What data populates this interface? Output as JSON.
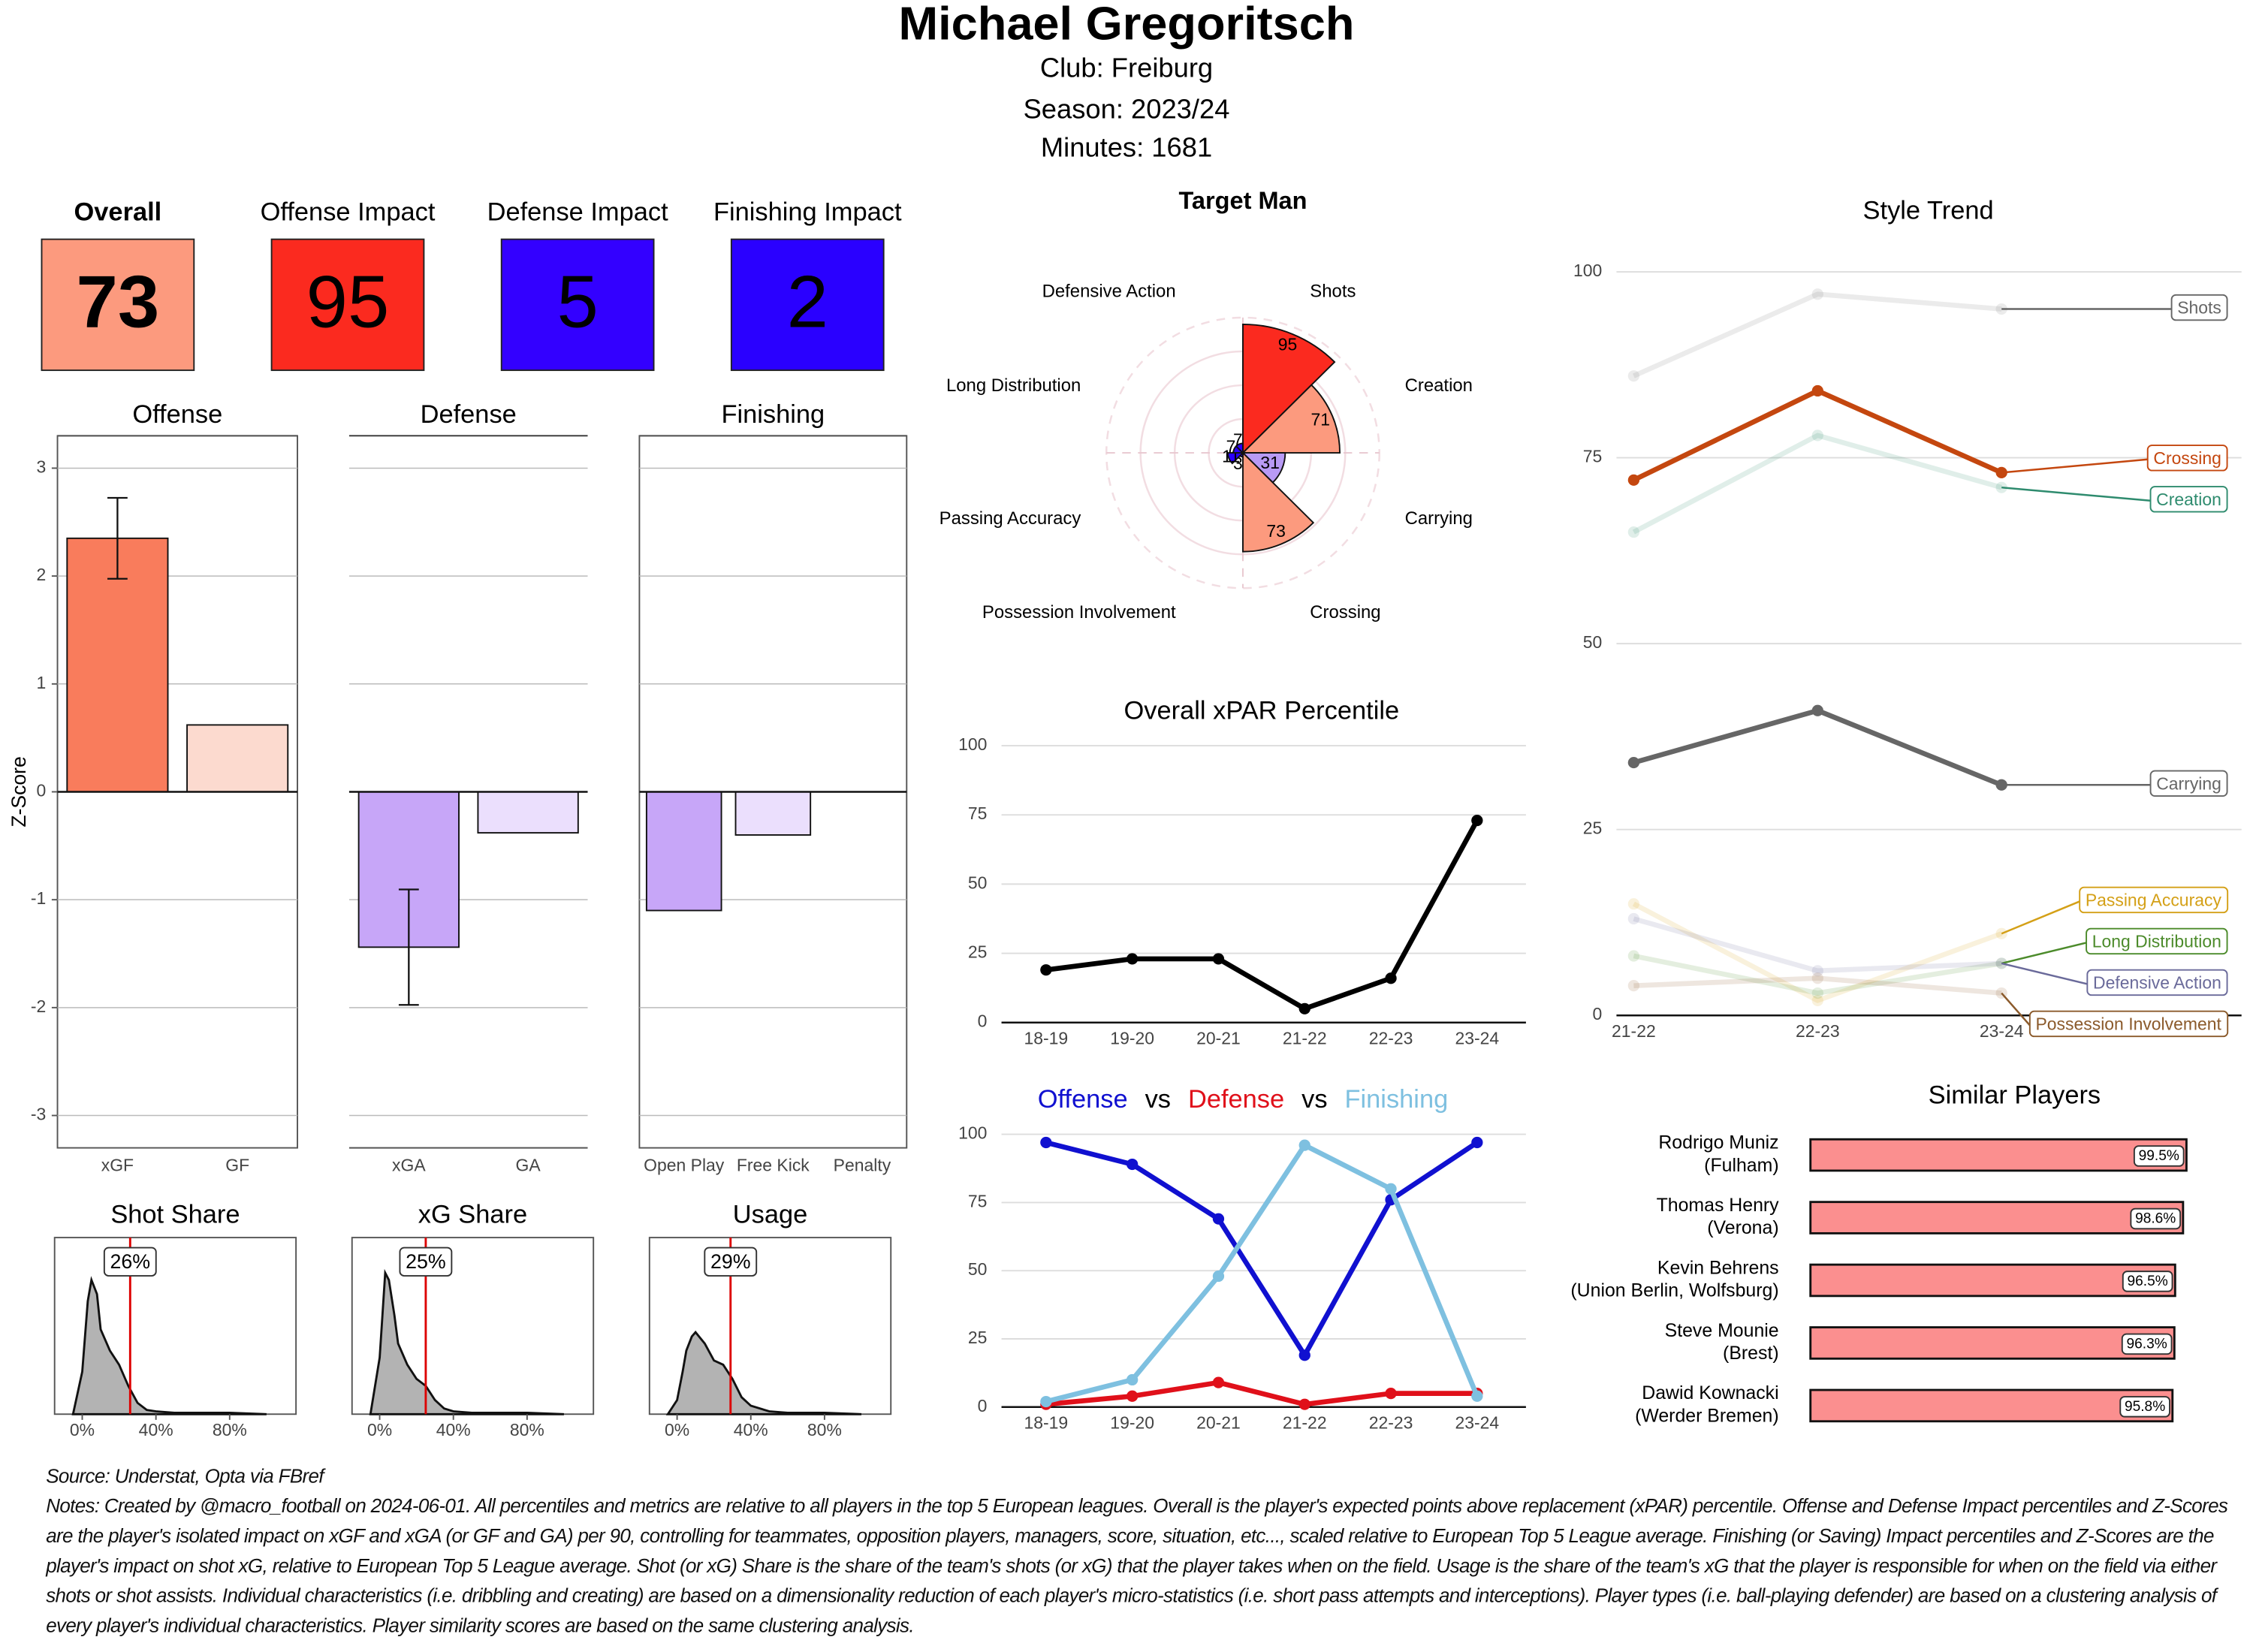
{
  "header": {
    "title": "Michael Gregoritsch",
    "lines": [
      "Club:  Freiburg",
      "Season:  2023/24",
      "Minutes:  1681"
    ]
  },
  "cards": [
    {
      "label": "Overall",
      "value": 73,
      "color": "#fc9a7e"
    },
    {
      "label": "Offense Impact",
      "value": 95,
      "color": "#fb2a1f"
    },
    {
      "label": "Defense Impact",
      "value": 5,
      "color": "#3300ff"
    },
    {
      "label": "Finishing Impact",
      "value": 2,
      "color": "#2a00ff"
    }
  ],
  "chart_data": [
    {
      "type": "bar",
      "title": "Offense",
      "y_label": "Z-Score",
      "categories": [
        "xGF",
        "GF"
      ],
      "values": [
        2.35,
        0.62
      ],
      "errors": [
        0.375,
        null
      ],
      "colors": [
        "#f97c5c",
        "#fcdacf"
      ],
      "ylim": [
        -3.3,
        3.3
      ],
      "yticks": [
        -3,
        -2,
        -1,
        0,
        1,
        2,
        3
      ],
      "grid": true
    },
    {
      "type": "bar",
      "title": "Defense",
      "categories": [
        "xGA",
        "GA"
      ],
      "values": [
        -1.44,
        -0.38
      ],
      "errors": [
        0.535,
        null
      ],
      "colors": [
        "#c7a6f8",
        "#ebdffd"
      ],
      "ylim": [
        -3.3,
        3.3
      ],
      "yticks": [
        -3,
        -2,
        -1,
        0,
        1,
        2,
        3
      ],
      "grid": true
    },
    {
      "type": "bar",
      "title": "Finishing",
      "categories": [
        "Open Play",
        "Free Kick",
        "Penalty"
      ],
      "values": [
        -1.1,
        -0.4,
        null
      ],
      "colors": [
        "#c7a6f8",
        "#ebdffd",
        "#ebdffd"
      ],
      "ylim": [
        -3.3,
        3.3
      ],
      "yticks": [
        -3,
        -2,
        -1,
        0,
        1,
        2,
        3
      ],
      "grid": true
    },
    {
      "type": "density",
      "title": "Shot Share",
      "x": [
        -5,
        0,
        3,
        5,
        8,
        10,
        15,
        20,
        25,
        30,
        35,
        40,
        50,
        60,
        80,
        100
      ],
      "values": [
        0,
        0.3,
        0.8,
        0.95,
        0.85,
        0.6,
        0.45,
        0.35,
        0.2,
        0.08,
        0.03,
        0.02,
        0.01,
        0.01,
        0.01,
        0
      ],
      "color": "#b3b3b3",
      "xlim": [
        -15,
        116
      ],
      "ylim": [
        0,
        1.25
      ],
      "xticks": [
        {
          "value": 0,
          "label": "0%"
        },
        {
          "value": 40,
          "label": "40%"
        },
        {
          "value": 80,
          "label": "80%"
        }
      ],
      "marker": {
        "value": 26,
        "label": "26%"
      }
    },
    {
      "type": "density",
      "title": "xG Share",
      "x": [
        -5,
        0,
        3,
        5,
        8,
        10,
        15,
        20,
        25,
        30,
        35,
        40,
        50,
        60,
        80,
        100
      ],
      "values": [
        0,
        0.4,
        1.0,
        0.95,
        0.7,
        0.5,
        0.35,
        0.25,
        0.2,
        0.1,
        0.04,
        0.02,
        0.01,
        0.01,
        0.01,
        0
      ],
      "color": "#b3b3b3",
      "xlim": [
        -15,
        116
      ],
      "ylim": [
        0,
        1.25
      ],
      "xticks": [
        {
          "value": 0,
          "label": "0%"
        },
        {
          "value": 40,
          "label": "40%"
        },
        {
          "value": 80,
          "label": "80%"
        }
      ],
      "marker": {
        "value": 25,
        "label": "25%"
      }
    },
    {
      "type": "density",
      "title": "Usage",
      "x": [
        -5,
        0,
        3,
        5,
        8,
        10,
        15,
        20,
        25,
        30,
        35,
        40,
        50,
        60,
        80,
        100
      ],
      "values": [
        0,
        0.1,
        0.3,
        0.45,
        0.55,
        0.58,
        0.5,
        0.38,
        0.35,
        0.25,
        0.12,
        0.06,
        0.02,
        0.01,
        0.01,
        0
      ],
      "color": "#b3b3b3",
      "xlim": [
        -15,
        116
      ],
      "ylim": [
        0,
        1.25
      ],
      "xticks": [
        {
          "value": 0,
          "label": "0%"
        },
        {
          "value": 40,
          "label": "40%"
        },
        {
          "value": 80,
          "label": "80%"
        }
      ],
      "marker": {
        "value": 29,
        "label": "29%"
      }
    },
    {
      "type": "polar_bar",
      "title": "Target Man",
      "categories": [
        "Shots",
        "Creation",
        "Carrying",
        "Crossing",
        "Possession Involvement",
        "Passing Accuracy",
        "Long Distribution",
        "Defensive Action"
      ],
      "values": [
        95,
        71,
        31,
        73,
        3,
        11,
        7,
        7
      ],
      "colors": [
        "#fb2a1f",
        "#fc9a7e",
        "#b89af5",
        "#fc9a7e",
        "#2a00ff",
        "#2a00ff",
        "#2a00ff",
        "#2a00ff"
      ],
      "rlim": [
        0,
        100
      ],
      "rticks": [
        25,
        50,
        75,
        100
      ]
    },
    {
      "type": "line",
      "title": "Overall xPAR Percentile",
      "categories": [
        "18-19",
        "19-20",
        "20-21",
        "21-22",
        "22-23",
        "23-24"
      ],
      "values": [
        19,
        23,
        23,
        5,
        16,
        73
      ],
      "color": "#000000",
      "ylim": [
        0,
        107
      ],
      "yticks": [
        0,
        25,
        50,
        75,
        100
      ],
      "grid": true
    },
    {
      "type": "line",
      "separator": "vs",
      "categories": [
        "18-19",
        "19-20",
        "20-21",
        "21-22",
        "22-23",
        "23-24"
      ],
      "series": [
        {
          "name": "Offense",
          "color": "#1010d0",
          "values": [
            97,
            89,
            69,
            19,
            76,
            97
          ]
        },
        {
          "name": "Defense",
          "color": "#e0101a",
          "values": [
            1,
            4,
            9,
            1,
            5,
            5
          ]
        },
        {
          "name": "Finishing",
          "color": "#7ec0e0",
          "values": [
            2,
            10,
            48,
            96,
            80,
            4
          ]
        }
      ],
      "ylim": [
        0,
        106
      ],
      "yticks": [
        0,
        25,
        50,
        75,
        100
      ],
      "grid": true
    },
    {
      "type": "line",
      "title": "Style Trend",
      "categories": [
        "21-22",
        "22-23",
        "23-24"
      ],
      "series": [
        {
          "name": "Shots",
          "color": "#666666",
          "opacity": 0.13,
          "values": [
            86,
            97,
            95
          ]
        },
        {
          "name": "Crossing",
          "color": "#c4470f",
          "opacity": 1,
          "values": [
            72,
            84,
            73
          ]
        },
        {
          "name": "Creation",
          "color": "#2e8b6e",
          "opacity": 0.15,
          "values": [
            65,
            78,
            71
          ]
        },
        {
          "name": "Carrying",
          "color": "#666666",
          "opacity": 1,
          "values": [
            34,
            41,
            31
          ]
        },
        {
          "name": "Passing Accuracy",
          "color": "#d4a017",
          "opacity": 0.15,
          "values": [
            15,
            2,
            11
          ]
        },
        {
          "name": "Long Distribution",
          "color": "#4c8b2b",
          "opacity": 0.15,
          "values": [
            8,
            3,
            7
          ]
        },
        {
          "name": "Defensive Action",
          "color": "#6a6a9a",
          "opacity": 0.15,
          "values": [
            13,
            6,
            7
          ]
        },
        {
          "name": "Possession Involvement",
          "color": "#8b5a2b",
          "opacity": 0.15,
          "values": [
            4,
            5,
            3
          ]
        }
      ],
      "ylim": [
        0,
        104
      ],
      "yticks": [
        0,
        25,
        50,
        75,
        100
      ],
      "grid": true
    },
    {
      "type": "hbar",
      "title": "Similar Players",
      "categories": [
        [
          "Rodrigo Muniz",
          "(Fulham)"
        ],
        [
          "Thomas Henry",
          "(Verona)"
        ],
        [
          "Kevin Behrens",
          "(Union Berlin, Wolfsburg)"
        ],
        [
          "Steve Mounie",
          "(Brest)"
        ],
        [
          "Dawid Kownacki",
          "(Werder Bremen)"
        ]
      ],
      "values": [
        99.5,
        98.6,
        96.5,
        96.3,
        95.8
      ],
      "value_labels": [
        "99.5%",
        "98.6%",
        "96.5%",
        "96.3%",
        "95.8%"
      ],
      "color": "#fb8f8f",
      "xlim": [
        0,
        100
      ]
    }
  ],
  "footer": {
    "source": "Source: Understat, Opta via FBref",
    "notes": "Notes: Created by @macro_football on 2024-06-01. All percentiles and metrics are relative to all players in the top 5 European leagues. Overall is the player's expected points above replacement (xPAR) percentile. Offense and Defense Impact percentiles and Z-Scores are the player's isolated impact on xGF and xGA (or GF and GA) per 90, controlling for teammates, opposition players, managers, score, situation, etc..., scaled relative to European Top 5 League average. Finishing (or Saving) Impact percentiles and Z-Scores are the player's impact on shot xG, relative to European Top 5 League average. Shot (or xG) Share is the share of the team's shots (or xG) that the player takes when on the field. Usage is the share of the team's xG that the player is responsible for when on the field via either shots or shot assists. Individual characteristics (i.e. dribbling and creating) are based on a dimensionality reduction of each player's micro-statistics (i.e. short pass attempts and interceptions). Player types (i.e. ball-playing defender) are based on a clustering analysis of every player's individual characteristics. Player similarity scores are based on the same clustering analysis."
  }
}
